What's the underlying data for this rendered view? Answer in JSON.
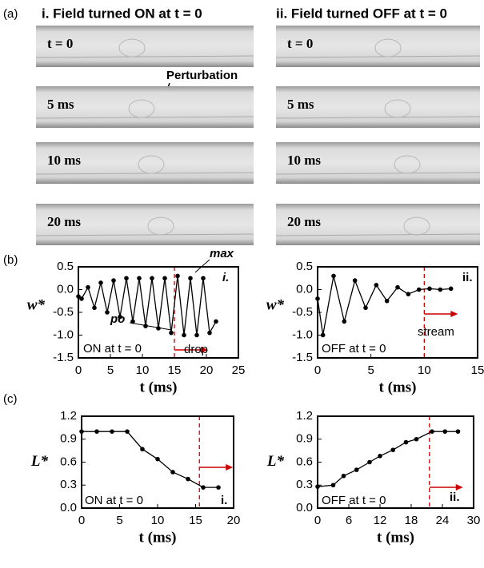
{
  "panel_labels": [
    "(a)",
    "(b)",
    "(c)"
  ],
  "panel_a": {
    "columns": [
      {
        "title": "i. Field turned ON at t = 0",
        "frames": [
          "t = 0",
          "5 ms",
          "10 ms",
          "20 ms"
        ]
      },
      {
        "title": "ii. Field turned OFF at t = 0",
        "frames": [
          "t = 0",
          "5 ms",
          "10 ms",
          "20 ms"
        ]
      }
    ],
    "annotation": "Perturbation"
  },
  "chart_data": [
    {
      "type": "line",
      "xlabel": "t (ms)",
      "ylabel": "w*",
      "x": [
        0,
        0.5,
        1.5,
        2.5,
        3.5,
        4.5,
        5.5,
        6.5,
        7.5,
        8.5,
        9.5,
        10.5,
        11.5,
        12.5,
        13.5,
        14.5,
        15.5,
        16.5,
        17.5,
        18.5,
        19.5,
        20.5,
        21.5
      ],
      "series": [
        {
          "color": "#000000",
          "values": [
            -0.15,
            -0.2,
            0.05,
            -0.4,
            0.15,
            -0.5,
            0.2,
            -0.6,
            0.25,
            -0.7,
            0.25,
            -0.8,
            0.25,
            -0.85,
            0.25,
            -0.95,
            0.3,
            -1.0,
            0.25,
            -1.0,
            0.25,
            -0.95,
            -0.7
          ]
        }
      ],
      "xlim": [
        0,
        25
      ],
      "xticks": [
        0,
        5,
        10,
        15,
        20,
        25
      ],
      "ylim": [
        -1.5,
        0.5
      ],
      "yticks": [
        0.5,
        {
          "value": 0,
          "label": "0.0"
        },
        -0.5,
        {
          "value": -1,
          "label": "-1.0"
        },
        -1.5
      ],
      "vline": 15,
      "vline_color": "#cc0000",
      "annotations": [
        "max",
        "po",
        "i.",
        "ON at t = 0",
        "drop"
      ]
    },
    {
      "type": "line",
      "xlabel": "t (ms)",
      "ylabel": "w*",
      "x": [
        0,
        0.5,
        1.5,
        2.5,
        3.5,
        4.5,
        5.5,
        6.5,
        7.5,
        8.5,
        9.5,
        10.5,
        11.5,
        12.5
      ],
      "series": [
        {
          "color": "#000000",
          "values": [
            -0.2,
            -1.0,
            0.3,
            -0.7,
            0.2,
            -0.4,
            0.1,
            -0.25,
            0.05,
            -0.1,
            0.0,
            0.02,
            0.0,
            0.02
          ]
        }
      ],
      "xlim": [
        0,
        15
      ],
      "xticks": [
        0,
        5,
        10,
        15
      ],
      "ylim": [
        -1.5,
        0.5
      ],
      "yticks": [
        0.5,
        {
          "value": 0,
          "label": "0.0"
        },
        -0.5,
        {
          "value": -1,
          "label": "-1.0"
        },
        -1.5
      ],
      "vline": 10,
      "vline_color": "#cc0000",
      "annotations": [
        "ii.",
        "OFF at t = 0",
        "stream"
      ]
    },
    {
      "type": "line",
      "xlabel": "t (ms)",
      "ylabel": "L*",
      "x": [
        0,
        2,
        4,
        6,
        8,
        10,
        12,
        14,
        16,
        18
      ],
      "series": [
        {
          "color": "#000000",
          "values": [
            1.0,
            1.0,
            1.0,
            1.0,
            0.77,
            0.64,
            0.47,
            0.38,
            0.27,
            0.27
          ]
        }
      ],
      "xlim": [
        0,
        20
      ],
      "xticks": [
        0,
        5,
        10,
        15,
        20
      ],
      "ylim": [
        0,
        1.2
      ],
      "yticks": [
        1.2,
        0.9,
        0.6,
        0.3,
        {
          "value": 0,
          "label": "0.0"
        }
      ],
      "vline": 15.5,
      "vline_color": "#cc0000",
      "annotations": [
        "ON at t = 0",
        "i."
      ]
    },
    {
      "type": "line",
      "xlabel": "t (ms)",
      "ylabel": "L*",
      "x": [
        0,
        3,
        5,
        7.5,
        10,
        12,
        14.5,
        17,
        19,
        22,
        24.5,
        27
      ],
      "series": [
        {
          "color": "#000000",
          "values": [
            0.28,
            0.3,
            0.42,
            0.5,
            0.6,
            0.68,
            0.76,
            0.86,
            0.9,
            1.0,
            1.0,
            1.0
          ]
        }
      ],
      "xlim": [
        0,
        30
      ],
      "xticks": [
        0,
        6,
        12,
        18,
        24,
        30
      ],
      "ylim": [
        0,
        1.2
      ],
      "yticks": [
        1.2,
        0.9,
        0.6,
        0.3,
        {
          "value": 0,
          "label": "0.0"
        }
      ],
      "vline": 21.5,
      "vline_color": "#cc0000",
      "annotations": [
        "OFF at t = 0",
        "ii."
      ]
    }
  ]
}
